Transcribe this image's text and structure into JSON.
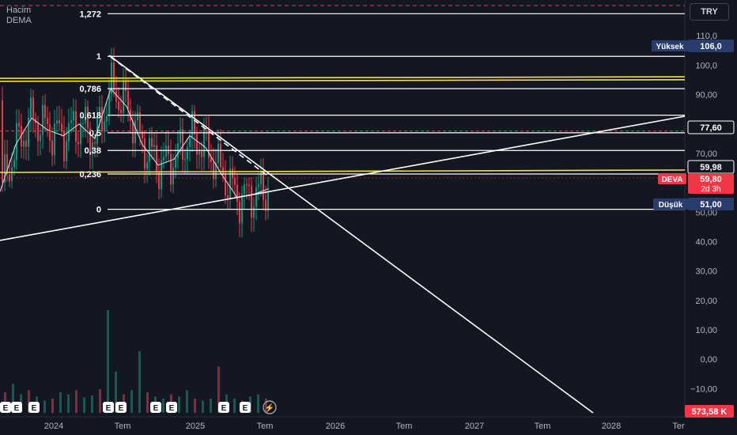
{
  "legend": {
    "line1": "Hacim",
    "line2": "DEMA"
  },
  "currency_button": "TRY",
  "colors": {
    "background": "#131722",
    "up": "#089981",
    "down": "#f23645",
    "fib_line": "#ffffff",
    "fib_band": "#f5e33b",
    "price_label": "#f23645",
    "high_low_label": "#2a3c6b"
  },
  "chart_data": {
    "type": "candlestick",
    "symbol": "DEVA",
    "y_axis": {
      "ticks": [
        "110,0",
        "100,0",
        "90,00",
        "80,00",
        "70,00",
        "60,00",
        "50,00",
        "40,00",
        "30,00",
        "20,00",
        "10,00",
        "0,00",
        "−10,00"
      ],
      "ylim": [
        -13,
        120
      ]
    },
    "x_axis": {
      "ticks": [
        "2024",
        "Tem",
        "2025",
        "Tem",
        "2026",
        "Tem",
        "2027",
        "Tem",
        "2028",
        "Ter"
      ]
    },
    "price_labels": {
      "high": {
        "label": "Yüksek",
        "value": "106,0"
      },
      "alert": {
        "value": "77,60"
      },
      "line": {
        "value": "59,98"
      },
      "current": {
        "symbol": "DEVA",
        "value": "59,80",
        "countdown": "2d 3h"
      },
      "low": {
        "label": "Düşük",
        "value": "51,00"
      },
      "volume": {
        "value": "573,58 K"
      }
    },
    "fib_levels": [
      {
        "label": "1,272",
        "value": 117.5
      },
      {
        "label": "1",
        "value": 103
      },
      {
        "label": "0,786",
        "value": 92
      },
      {
        "label": "0,618",
        "value": 83
      },
      {
        "label": "0,5",
        "value": 77
      },
      {
        "label": "0,38",
        "value": 71
      },
      {
        "label": "0,236",
        "value": 63
      },
      {
        "label": "0",
        "value": 51
      }
    ],
    "fib_band_levels": [
      95.5,
      94.5
    ],
    "dema_points": [
      [
        0,
        57
      ],
      [
        20,
        73
      ],
      [
        40,
        82
      ],
      [
        60,
        78
      ],
      [
        80,
        76
      ],
      [
        100,
        80
      ],
      [
        120,
        75
      ],
      [
        140,
        92
      ],
      [
        160,
        86
      ],
      [
        180,
        73
      ],
      [
        200,
        66
      ],
      [
        220,
        68
      ],
      [
        240,
        76
      ],
      [
        260,
        72
      ],
      [
        280,
        63
      ],
      [
        300,
        55
      ],
      [
        320,
        56
      ],
      [
        340,
        58
      ]
    ],
    "volume_bars": [
      {
        "x": 5,
        "v": 20
      },
      {
        "x": 15,
        "v": 28
      },
      {
        "x": 25,
        "v": 18
      },
      {
        "x": 35,
        "v": 22
      },
      {
        "x": 45,
        "v": 16
      },
      {
        "x": 55,
        "v": 12
      },
      {
        "x": 65,
        "v": 14
      },
      {
        "x": 75,
        "v": 20
      },
      {
        "x": 85,
        "v": 18
      },
      {
        "x": 95,
        "v": 22
      },
      {
        "x": 105,
        "v": 15
      },
      {
        "x": 115,
        "v": 17
      },
      {
        "x": 125,
        "v": 23
      },
      {
        "x": 135,
        "v": 100
      },
      {
        "x": 145,
        "v": 40
      },
      {
        "x": 155,
        "v": 18
      },
      {
        "x": 165,
        "v": 22
      },
      {
        "x": 175,
        "v": 60
      },
      {
        "x": 185,
        "v": 20
      },
      {
        "x": 195,
        "v": 16
      },
      {
        "x": 205,
        "v": 14
      },
      {
        "x": 215,
        "v": 18
      },
      {
        "x": 225,
        "v": 16
      },
      {
        "x": 235,
        "v": 22
      },
      {
        "x": 245,
        "v": 14
      },
      {
        "x": 255,
        "v": 12
      },
      {
        "x": 265,
        "v": 14
      },
      {
        "x": 275,
        "v": 45
      },
      {
        "x": 285,
        "v": 18
      },
      {
        "x": 295,
        "v": 14
      },
      {
        "x": 305,
        "v": 12
      },
      {
        "x": 315,
        "v": 16
      },
      {
        "x": 325,
        "v": 18
      },
      {
        "x": 335,
        "v": 14
      }
    ],
    "earnings_markers": [
      0,
      14,
      36,
      130,
      146,
      190,
      210,
      276,
      303
    ]
  }
}
